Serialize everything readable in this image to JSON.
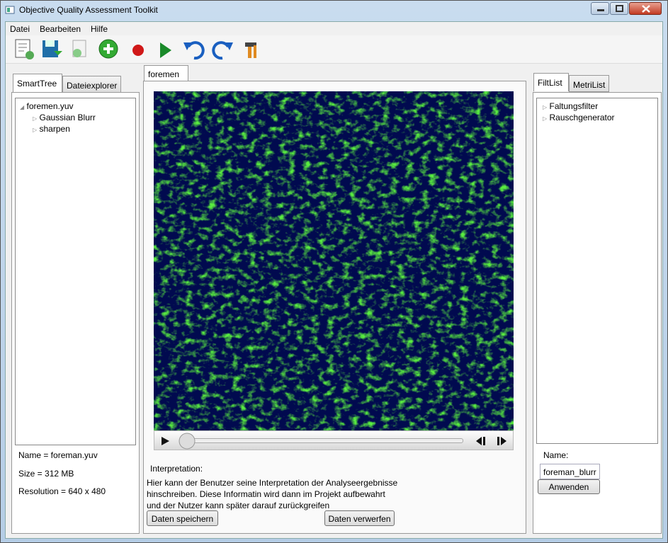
{
  "window": {
    "title": "Objective Quality Assessment Toolkit"
  },
  "menu": [
    "Datei",
    "Bearbeiten",
    "Hilfe"
  ],
  "left_panel": {
    "tabs": [
      "SmartTree",
      "Dateiexplorer"
    ],
    "tree": {
      "root": "foremen.yuv",
      "children": [
        "Gaussian Blurr",
        "sharpen"
      ]
    },
    "info": [
      "Name = foreman.yuv",
      "Size = 312 MB",
      "Resolution = 640 x 480"
    ]
  },
  "center_panel": {
    "tab": "foremen",
    "interpretation_label": "Interpretation:",
    "interpretation_text": [
      "Hier kann der Benutzer seine Interpretation der Analyseergebnisse",
      "hinschreiben. Diese Informatin wird dann im Projekt aufbewahrt",
      "und der Nutzer kann später darauf zurückgreifen"
    ],
    "buttons": [
      "Daten speichern",
      "Daten verwerfen"
    ]
  },
  "right_panel": {
    "tabs": [
      "FiltList",
      "MetriList"
    ],
    "tree": [
      "Faltungsfilter",
      "Rauschgenerator"
    ],
    "name_label": "Name:",
    "name_value": "foreman_blurr",
    "apply_button": "Anwenden"
  }
}
